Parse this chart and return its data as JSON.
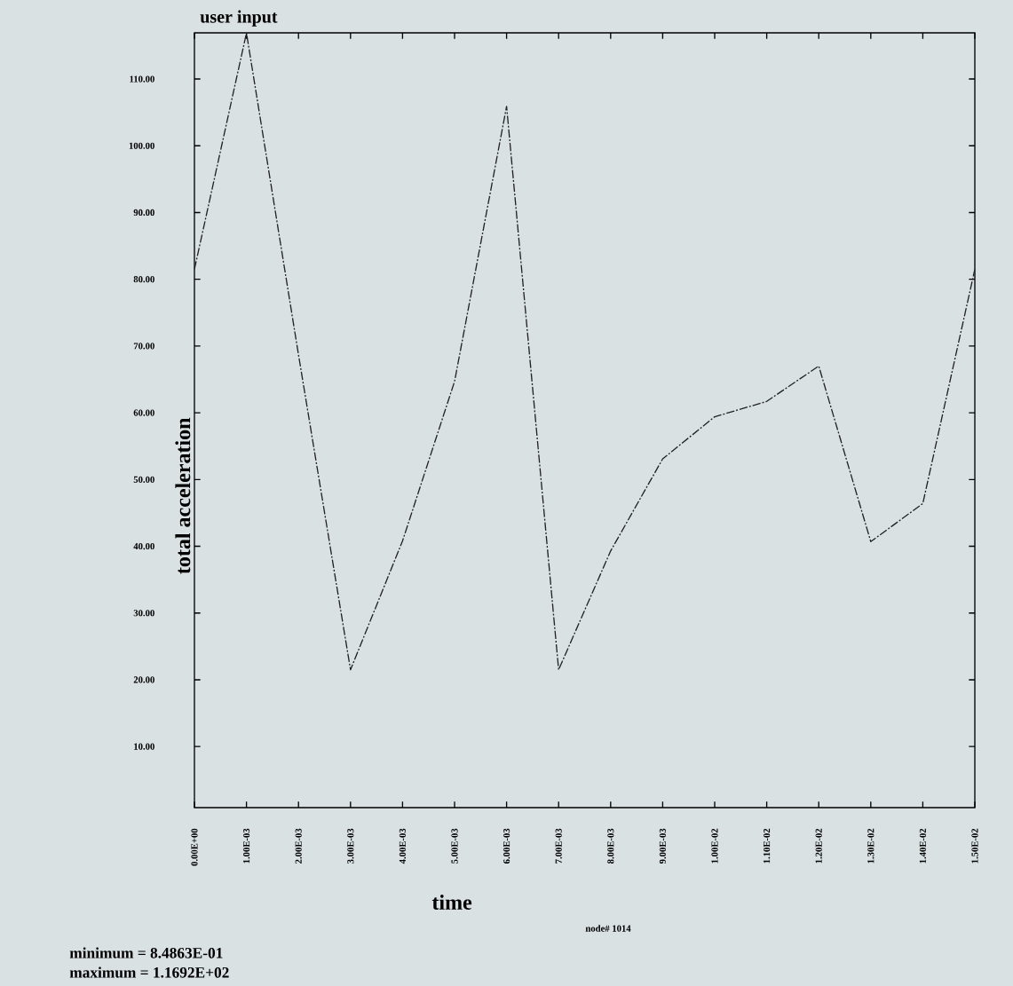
{
  "chart_data": {
    "type": "line",
    "title": "user input",
    "xlabel": "time",
    "ylabel": "total acceleration",
    "x": [
      0,
      0.001,
      0.002,
      0.003,
      0.004,
      0.005,
      0.006,
      0.007,
      0.008,
      0.009,
      0.01,
      0.011,
      0.012,
      0.013,
      0.014,
      0.015
    ],
    "series": [
      {
        "color": "#222222",
        "values": [
          81.5,
          116.9,
          68.7,
          21.5,
          40.8,
          64.7,
          105.9,
          21.5,
          39.3,
          53.1,
          59.4,
          61.7,
          67.0,
          40.7,
          46.4,
          81.5
        ]
      }
    ],
    "xlim": [
      0,
      0.015
    ],
    "ylim": [
      0.85,
      116.92
    ],
    "xticks": [
      {
        "value": 0,
        "label": "0.00E+00"
      },
      {
        "value": 0.001,
        "label": "1.00E-03"
      },
      {
        "value": 0.002,
        "label": "2.00E-03"
      },
      {
        "value": 0.003,
        "label": "3.00E-03"
      },
      {
        "value": 0.004,
        "label": "4.00E-03"
      },
      {
        "value": 0.005,
        "label": "5.00E-03"
      },
      {
        "value": 0.006,
        "label": "6.00E-03"
      },
      {
        "value": 0.007,
        "label": "7.00E-03"
      },
      {
        "value": 0.008,
        "label": "8.00E-03"
      },
      {
        "value": 0.009,
        "label": "9.00E-03"
      },
      {
        "value": 0.01,
        "label": "1.00E-02"
      },
      {
        "value": 0.011,
        "label": "1.10E-02"
      },
      {
        "value": 0.012,
        "label": "1.20E-02"
      },
      {
        "value": 0.013,
        "label": "1.30E-02"
      },
      {
        "value": 0.014,
        "label": "1.40E-02"
      },
      {
        "value": 0.015,
        "label": "1.50E-02"
      }
    ],
    "yticks": [
      {
        "value": 10,
        "label": "10.00"
      },
      {
        "value": 20,
        "label": "20.00"
      },
      {
        "value": 30,
        "label": "30.00"
      },
      {
        "value": 40,
        "label": "40.00"
      },
      {
        "value": 50,
        "label": "50.00"
      },
      {
        "value": 60,
        "label": "60.00"
      },
      {
        "value": 70,
        "label": "70.00"
      },
      {
        "value": 80,
        "label": "80.00"
      },
      {
        "value": 90,
        "label": "90.00"
      },
      {
        "value": 100,
        "label": "100.00"
      },
      {
        "value": 110,
        "label": "110.00"
      }
    ],
    "annotations": [
      "node# 1014",
      "minimum =  8.4863E-01",
      "maximum =  1.1692E+02"
    ],
    "line_style": "dashed",
    "marker": "none",
    "grid": false,
    "legend": false
  }
}
